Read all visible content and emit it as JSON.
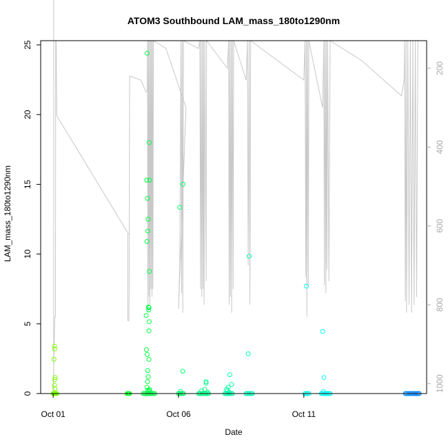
{
  "chart_data": {
    "type": "scatter",
    "title": "ATOM3 Southbound LAM_mass_180to1290nm",
    "xlabel": "Date",
    "ylabel": "LAM_mass_180to1290nm",
    "x_tick_labels": [
      "Oct 01",
      "Oct 06",
      "Oct 11"
    ],
    "x_tick_days": [
      1,
      6,
      11
    ],
    "xlim": [
      0.5,
      15.9
    ],
    "ylim": [
      0,
      25.3
    ],
    "y_ticks": [
      0,
      5,
      10,
      15,
      20,
      25
    ],
    "y2_ticks": [
      200,
      400,
      600,
      800,
      1000
    ],
    "y2_lim": [
      1025,
      130
    ],
    "grid": false,
    "colors": {
      "altitude": "#c8c8c8",
      "right_axis": "#a8a8a8",
      "point_ramp": [
        "#80ff00",
        "#00ff40",
        "#00ffb0",
        "#00ffff",
        "#0080ff"
      ]
    },
    "series": [
      {
        "values": [
          [
            1.0,
            0.0
          ],
          [
            1.02,
            0.0
          ],
          [
            1.04,
            0.0
          ],
          [
            1.06,
            0.0
          ],
          [
            1.08,
            0.0
          ],
          [
            1.1,
            0.0
          ],
          [
            1.12,
            0.0
          ],
          [
            1.14,
            0.0
          ],
          [
            1.05,
            3.4
          ],
          [
            1.06,
            3.2
          ],
          [
            1.03,
            2.45
          ],
          [
            1.08,
            1.15
          ],
          [
            1.06,
            1.0
          ],
          [
            1.05,
            0.6
          ],
          [
            1.07,
            0.35
          ],
          [
            3.95,
            0.0
          ],
          [
            3.97,
            0.0
          ],
          [
            3.99,
            0.0
          ],
          [
            4.01,
            0.0
          ],
          [
            4.03,
            0.0
          ],
          [
            4.05,
            0.0
          ],
          [
            4.6,
            0.0
          ],
          [
            4.65,
            0.0
          ],
          [
            4.7,
            0.0
          ],
          [
            4.75,
            0.0
          ],
          [
            4.8,
            0.0
          ],
          [
            4.85,
            0.0
          ],
          [
            4.9,
            0.0
          ],
          [
            4.95,
            0.0
          ],
          [
            5.0,
            0.0
          ],
          [
            5.05,
            0.0
          ],
          [
            4.75,
            24.4
          ],
          [
            4.83,
            18.0
          ],
          [
            4.73,
            15.3
          ],
          [
            4.85,
            15.3
          ],
          [
            4.76,
            14.0
          ],
          [
            4.79,
            12.5
          ],
          [
            4.78,
            11.65
          ],
          [
            4.74,
            10.9
          ],
          [
            4.84,
            8.75
          ],
          [
            4.8,
            6.2
          ],
          [
            4.82,
            6.15
          ],
          [
            4.81,
            6.0
          ],
          [
            4.71,
            5.6
          ],
          [
            4.83,
            5.15
          ],
          [
            4.82,
            4.5
          ],
          [
            4.72,
            3.15
          ],
          [
            4.75,
            2.8
          ],
          [
            4.82,
            2.45
          ],
          [
            4.77,
            1.65
          ],
          [
            4.79,
            1.2
          ],
          [
            4.76,
            0.85
          ],
          [
            4.74,
            0.45
          ],
          [
            4.78,
            0.25
          ],
          [
            4.8,
            0.15
          ],
          [
            4.84,
            0.3
          ],
          [
            4.86,
            0.2
          ],
          [
            6.0,
            0.0
          ],
          [
            6.05,
            0.0
          ],
          [
            6.1,
            0.0
          ],
          [
            6.15,
            0.0
          ],
          [
            6.2,
            0.0
          ],
          [
            6.05,
            13.35
          ],
          [
            6.18,
            15.0
          ],
          [
            6.17,
            1.6
          ],
          [
            6.08,
            0.15
          ],
          [
            6.8,
            0.0
          ],
          [
            6.85,
            0.0
          ],
          [
            6.9,
            0.0
          ],
          [
            6.95,
            0.0
          ],
          [
            7.0,
            0.0
          ],
          [
            7.05,
            0.0
          ],
          [
            7.1,
            0.0
          ],
          [
            7.15,
            0.0
          ],
          [
            7.2,
            0.0
          ],
          [
            7.1,
            0.85
          ],
          [
            7.1,
            0.75
          ],
          [
            7.05,
            0.3
          ],
          [
            6.92,
            0.2
          ],
          [
            7.15,
            0.1
          ],
          [
            7.85,
            0.0
          ],
          [
            7.9,
            0.0
          ],
          [
            7.95,
            0.0
          ],
          [
            8.0,
            0.0
          ],
          [
            8.05,
            0.0
          ],
          [
            8.1,
            0.0
          ],
          [
            8.15,
            0.0
          ],
          [
            8.05,
            1.35
          ],
          [
            8.12,
            0.65
          ],
          [
            7.98,
            0.45
          ],
          [
            7.92,
            0.3
          ],
          [
            7.95,
            0.2
          ],
          [
            8.02,
            0.1
          ],
          [
            8.7,
            0.0
          ],
          [
            8.75,
            0.0
          ],
          [
            8.8,
            0.0
          ],
          [
            8.85,
            0.0
          ],
          [
            8.9,
            0.0
          ],
          [
            8.95,
            0.0
          ],
          [
            8.82,
            9.85
          ],
          [
            8.78,
            2.85
          ],
          [
            11.05,
            0.0
          ],
          [
            11.1,
            0.0
          ],
          [
            11.15,
            0.0
          ],
          [
            11.2,
            0.0
          ],
          [
            11.1,
            7.7
          ],
          [
            11.7,
            0.0
          ],
          [
            11.75,
            0.0
          ],
          [
            11.8,
            0.0
          ],
          [
            11.85,
            0.0
          ],
          [
            11.9,
            0.0
          ],
          [
            11.95,
            0.0
          ],
          [
            12.0,
            0.0
          ],
          [
            12.05,
            0.0
          ],
          [
            11.75,
            4.45
          ],
          [
            11.8,
            1.15
          ],
          [
            11.78,
            0.15
          ],
          [
            15.05,
            0.0
          ],
          [
            15.1,
            0.0
          ],
          [
            15.15,
            0.0
          ],
          [
            15.2,
            0.0
          ],
          [
            15.25,
            0.0
          ],
          [
            15.3,
            0.0
          ],
          [
            15.35,
            0.0
          ],
          [
            15.4,
            0.0
          ],
          [
            15.45,
            0.0
          ],
          [
            15.5,
            0.0
          ],
          [
            15.55,
            0.0
          ],
          [
            15.6,
            0.0
          ]
        ]
      }
    ],
    "altitude": [
      [
        1.02,
        5.7
      ],
      [
        1.02,
        1015
      ],
      [
        1.0,
        1020
      ],
      [
        1.06,
        830
      ],
      [
        1.09,
        830
      ],
      [
        1.1,
        130
      ],
      [
        1.12,
        130
      ],
      [
        1.14,
        320
      ],
      [
        1.14,
        320
      ],
      [
        4.0,
        620
      ],
      [
        3.98,
        620
      ],
      [
        3.98,
        840
      ],
      [
        4.02,
        840
      ],
      [
        4.03,
        760
      ],
      [
        4.05,
        220
      ],
      [
        4.05,
        220
      ],
      [
        4.5,
        230
      ],
      [
        4.7,
        260
      ],
      [
        4.75,
        260
      ],
      [
        4.76,
        130
      ],
      [
        4.78,
        820
      ],
      [
        4.8,
        130
      ],
      [
        4.82,
        780
      ],
      [
        4.84,
        130
      ],
      [
        4.86,
        800
      ],
      [
        4.88,
        130
      ],
      [
        4.9,
        760
      ],
      [
        4.92,
        130
      ],
      [
        4.94,
        780
      ],
      [
        4.96,
        130
      ],
      [
        4.98,
        760
      ],
      [
        5.0,
        130
      ],
      [
        5.0,
        130
      ],
      [
        5.5,
        150
      ],
      [
        6.3,
        300
      ],
      [
        6.3,
        300
      ],
      [
        6.0,
        810
      ],
      [
        6.05,
        700
      ],
      [
        6.1,
        130
      ],
      [
        6.12,
        770
      ],
      [
        6.15,
        130
      ],
      [
        6.17,
        820
      ],
      [
        6.2,
        130
      ],
      [
        6.2,
        130
      ],
      [
        6.8,
        150
      ],
      [
        6.85,
        130
      ],
      [
        6.88,
        760
      ],
      [
        6.9,
        130
      ],
      [
        6.93,
        780
      ],
      [
        6.95,
        130
      ],
      [
        6.98,
        760
      ],
      [
        7.0,
        130
      ],
      [
        7.02,
        800
      ],
      [
        7.05,
        130
      ],
      [
        7.1,
        740
      ],
      [
        7.12,
        130
      ],
      [
        7.12,
        130
      ],
      [
        7.95,
        200
      ],
      [
        8.0,
        130
      ],
      [
        8.02,
        800
      ],
      [
        8.05,
        130
      ],
      [
        8.07,
        780
      ],
      [
        8.1,
        130
      ],
      [
        8.12,
        820
      ],
      [
        8.15,
        130
      ],
      [
        8.18,
        760
      ],
      [
        8.2,
        130
      ],
      [
        8.2,
        130
      ],
      [
        8.7,
        230
      ],
      [
        8.75,
        130
      ],
      [
        8.78,
        700
      ],
      [
        8.82,
        130
      ],
      [
        8.85,
        800
      ],
      [
        8.88,
        130
      ],
      [
        8.88,
        130
      ],
      [
        11.0,
        230
      ],
      [
        11.05,
        130
      ],
      [
        11.08,
        730
      ],
      [
        11.1,
        130
      ],
      [
        11.12,
        830
      ],
      [
        11.15,
        130
      ],
      [
        11.18,
        750
      ],
      [
        11.2,
        130
      ],
      [
        11.2,
        130
      ],
      [
        11.75,
        300
      ],
      [
        11.8,
        130
      ],
      [
        11.82,
        750
      ],
      [
        11.85,
        130
      ],
      [
        11.88,
        770
      ],
      [
        11.9,
        130
      ],
      [
        11.92,
        710
      ],
      [
        11.95,
        130
      ],
      [
        12.0,
        740
      ],
      [
        12.05,
        130
      ],
      [
        12.05,
        130
      ],
      [
        13.3,
        180
      ],
      [
        14.9,
        270
      ],
      [
        15.0,
        230
      ],
      [
        15.02,
        130
      ],
      [
        15.05,
        790
      ],
      [
        15.08,
        130
      ],
      [
        15.1,
        820
      ],
      [
        15.15,
        130
      ],
      [
        15.2,
        800
      ],
      [
        15.25,
        130
      ],
      [
        15.3,
        820
      ],
      [
        15.35,
        130
      ],
      [
        15.4,
        800
      ],
      [
        15.45,
        130
      ],
      [
        15.5,
        780
      ],
      [
        15.55,
        130
      ]
    ]
  }
}
